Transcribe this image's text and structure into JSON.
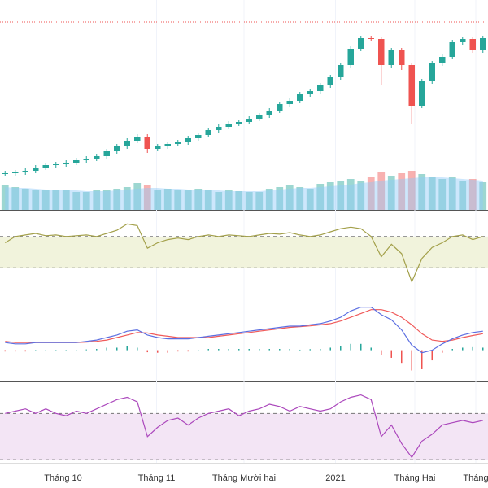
{
  "chart_data": {
    "type": "candlestick",
    "xlim": [
      -0.5,
      47.5
    ],
    "xticks": [
      {
        "value": 5.7,
        "label": "Tháng 10"
      },
      {
        "value": 14.9,
        "label": "Tháng 11"
      },
      {
        "value": 23.5,
        "label": "Tháng Mười hai"
      },
      {
        "value": 32.5,
        "label": "2021"
      },
      {
        "value": 40.3,
        "label": "Tháng Hai"
      },
      {
        "value": 46.3,
        "label": "Tháng"
      }
    ],
    "ylim": [
      0,
      258
    ],
    "up_color": "#26a69a",
    "down_color": "#ef5350",
    "hline": 231,
    "hline_color": "#ef5350",
    "open": [
      44,
      45,
      46,
      48,
      52,
      55,
      56,
      58,
      61,
      63,
      66,
      72,
      78,
      85,
      90,
      75,
      78,
      81,
      83,
      88,
      92,
      98,
      102,
      106,
      108,
      112,
      116,
      122,
      130,
      134,
      142,
      146,
      153,
      163,
      178,
      198,
      211,
      210,
      178,
      196,
      178,
      128,
      158,
      180,
      188,
      206,
      210,
      196
    ],
    "high": [
      48,
      49,
      51,
      55,
      58,
      59,
      61,
      64,
      66,
      69,
      75,
      81,
      88,
      93,
      93,
      81,
      84,
      86,
      91,
      95,
      101,
      105,
      109,
      111,
      115,
      119,
      125,
      133,
      137,
      145,
      149,
      156,
      166,
      181,
      201,
      214,
      214,
      213,
      199,
      199,
      181,
      161,
      183,
      191,
      209,
      213,
      213,
      214
    ],
    "low": [
      41,
      42,
      43,
      45,
      49,
      52,
      53,
      55,
      58,
      60,
      63,
      69,
      75,
      82,
      70,
      72,
      75,
      78,
      80,
      85,
      89,
      95,
      99,
      103,
      105,
      109,
      113,
      119,
      127,
      131,
      139,
      143,
      150,
      160,
      175,
      195,
      207,
      153,
      175,
      172,
      106,
      125,
      155,
      177,
      185,
      203,
      193,
      193
    ],
    "close": [
      45,
      46,
      48,
      52,
      55,
      56,
      58,
      61,
      63,
      66,
      72,
      78,
      85,
      90,
      75,
      78,
      81,
      83,
      88,
      92,
      98,
      102,
      106,
      108,
      112,
      116,
      122,
      130,
      134,
      142,
      146,
      153,
      163,
      178,
      198,
      211,
      210,
      178,
      196,
      178,
      128,
      158,
      180,
      188,
      206,
      210,
      196,
      211
    ],
    "volume": {
      "ylim": [
        0,
        200
      ],
      "values": [
        30,
        28,
        26,
        25,
        25,
        24,
        24,
        22,
        22,
        25,
        24,
        26,
        28,
        33,
        30,
        25,
        26,
        25,
        24,
        26,
        24,
        22,
        24,
        23,
        22,
        22,
        26,
        28,
        30,
        28,
        26,
        32,
        34,
        36,
        38,
        35,
        40,
        47,
        42,
        45,
        48,
        44,
        40,
        38,
        40,
        36,
        38,
        34
      ],
      "ma": [
        28,
        27,
        27,
        26,
        25,
        25,
        24,
        24,
        23,
        23,
        23,
        24,
        25,
        26,
        27,
        27,
        26,
        26,
        25,
        25,
        24,
        24,
        23,
        23,
        23,
        23,
        24,
        25,
        26,
        27,
        27,
        28,
        29,
        30,
        31,
        33,
        34,
        36,
        37,
        38,
        39,
        40,
        40,
        40,
        39,
        38,
        37,
        36
      ],
      "ma_color": "#90caf9"
    },
    "indicators": [
      {
        "type": "line",
        "ylim": [
          0,
          100
        ],
        "levels": [
          70,
          30
        ],
        "color": "#a3a04a",
        "band_color": "#f1f3dc",
        "values": [
          62,
          70,
          72,
          74,
          71,
          72,
          70,
          71,
          72,
          70,
          74,
          78,
          86,
          84,
          55,
          62,
          66,
          68,
          66,
          70,
          72,
          70,
          72,
          71,
          70,
          72,
          74,
          73,
          75,
          72,
          70,
          72,
          76,
          80,
          82,
          80,
          70,
          44,
          60,
          48,
          12,
          42,
          56,
          62,
          70,
          72,
          66,
          70
        ]
      },
      {
        "type": "macd",
        "ylim": [
          -12,
          22
        ],
        "macd_color": "#5b6ee1",
        "signal_color": "#f05a5a",
        "macd": [
          3,
          2.5,
          2.5,
          3,
          3,
          3,
          3,
          3,
          3.5,
          4,
          5,
          6,
          7.5,
          8,
          6,
          5,
          4.5,
          4.5,
          4.5,
          5,
          5.5,
          6,
          6.5,
          7,
          7.5,
          8,
          8.5,
          9,
          9.5,
          9.5,
          10,
          10.5,
          11.5,
          13,
          15.5,
          17,
          17,
          14,
          12,
          8,
          2,
          -1,
          0,
          2.5,
          4.5,
          6,
          7,
          7.5
        ],
        "signal": [
          3.5,
          3,
          3,
          3,
          3,
          3,
          3,
          3,
          3.2,
          3.5,
          4,
          5,
          6,
          7,
          6.8,
          6,
          5.5,
          5,
          5,
          5,
          5,
          5.5,
          6,
          6.5,
          7,
          7.5,
          8,
          8.5,
          9,
          9.3,
          9.6,
          10,
          10.5,
          11.5,
          13,
          14.5,
          16,
          16,
          15,
          13,
          10,
          6.5,
          4,
          3.5,
          4,
          5,
          5.8,
          6.5
        ],
        "histogram": [
          -0.5,
          -0.5,
          -0.5,
          0,
          0,
          0,
          0,
          0,
          0.3,
          0.5,
          1,
          1,
          1.5,
          1,
          -0.8,
          -1,
          -1,
          -0.5,
          -0.5,
          0,
          0.5,
          0.5,
          0.5,
          0.5,
          0.5,
          0.5,
          0.5,
          0.5,
          0.5,
          0.2,
          0.4,
          0.5,
          1,
          1.5,
          2.5,
          2.5,
          1,
          -2,
          -3,
          -5,
          -8,
          -7.5,
          -4,
          -1,
          0.5,
          1,
          1.2,
          1
        ]
      },
      {
        "type": "line",
        "ylim": [
          28,
          97
        ],
        "levels": [
          70,
          30
        ],
        "color": "#ab47bc",
        "band_color": "#f3e5f5",
        "values": [
          70,
          72,
          74,
          70,
          74,
          70,
          68,
          72,
          70,
          74,
          78,
          82,
          84,
          80,
          50,
          58,
          64,
          66,
          60,
          66,
          70,
          72,
          74,
          68,
          72,
          74,
          78,
          76,
          72,
          76,
          74,
          72,
          74,
          80,
          84,
          86,
          82,
          50,
          60,
          44,
          32,
          46,
          52,
          60,
          62,
          64,
          62,
          64
        ]
      }
    ]
  }
}
